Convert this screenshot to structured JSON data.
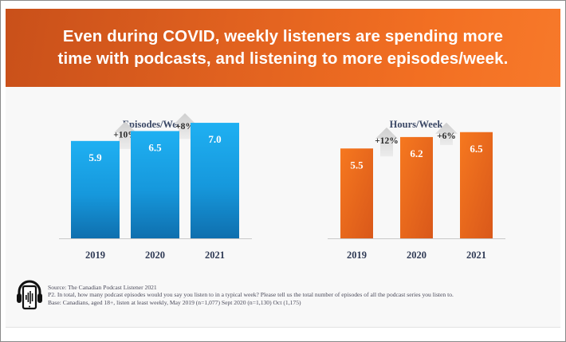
{
  "banner": {
    "line1": "Even during COVID, weekly listeners are spending more",
    "line2": "time with podcasts, and listening to more episodes/week."
  },
  "colors": {
    "banner_orange": "#e8661f",
    "episodes_bar": "#1aa3e8",
    "hours_bar": "#f06d1f",
    "arrow_gray": "#dcdcdc",
    "title_text": "#3b4866"
  },
  "chart_data": [
    {
      "type": "bar",
      "title": "Episodes/Week",
      "categories": [
        "2019",
        "2020",
        "2021"
      ],
      "values": [
        5.9,
        6.5,
        7.0
      ],
      "value_labels": [
        "5.9",
        "6.5",
        "7.0"
      ],
      "changes": [
        "+10%",
        "+8%"
      ],
      "xlabel": "",
      "ylabel": "",
      "ylim": [
        0,
        9.9
      ],
      "grid": false,
      "legend": "none"
    },
    {
      "type": "bar",
      "title": "Hours/Week",
      "categories": [
        "2019",
        "2020",
        "2021"
      ],
      "values": [
        5.5,
        6.2,
        6.5
      ],
      "value_labels": [
        "5.5",
        "6.2",
        "6.5"
      ],
      "changes": [
        "+12%",
        "+6%"
      ],
      "xlabel": "",
      "ylabel": "",
      "ylim": [
        0,
        10.0
      ],
      "grid": false,
      "legend": "none"
    }
  ],
  "footer": {
    "icon": "podcast-headphones-phone-icon",
    "source": "Source: The Canadian Podcast Listener 2021",
    "question": "P2. In total, how many podcast episodes would you say you listen to in a typical week? Please tell us the total number of episodes of all the podcast series you listen to.",
    "base": "Base: Canadians, aged 18+, listen at least weekly, May 2019 (n=1,077) Sept 2020 (n=1,130) Oct (1,175)"
  }
}
